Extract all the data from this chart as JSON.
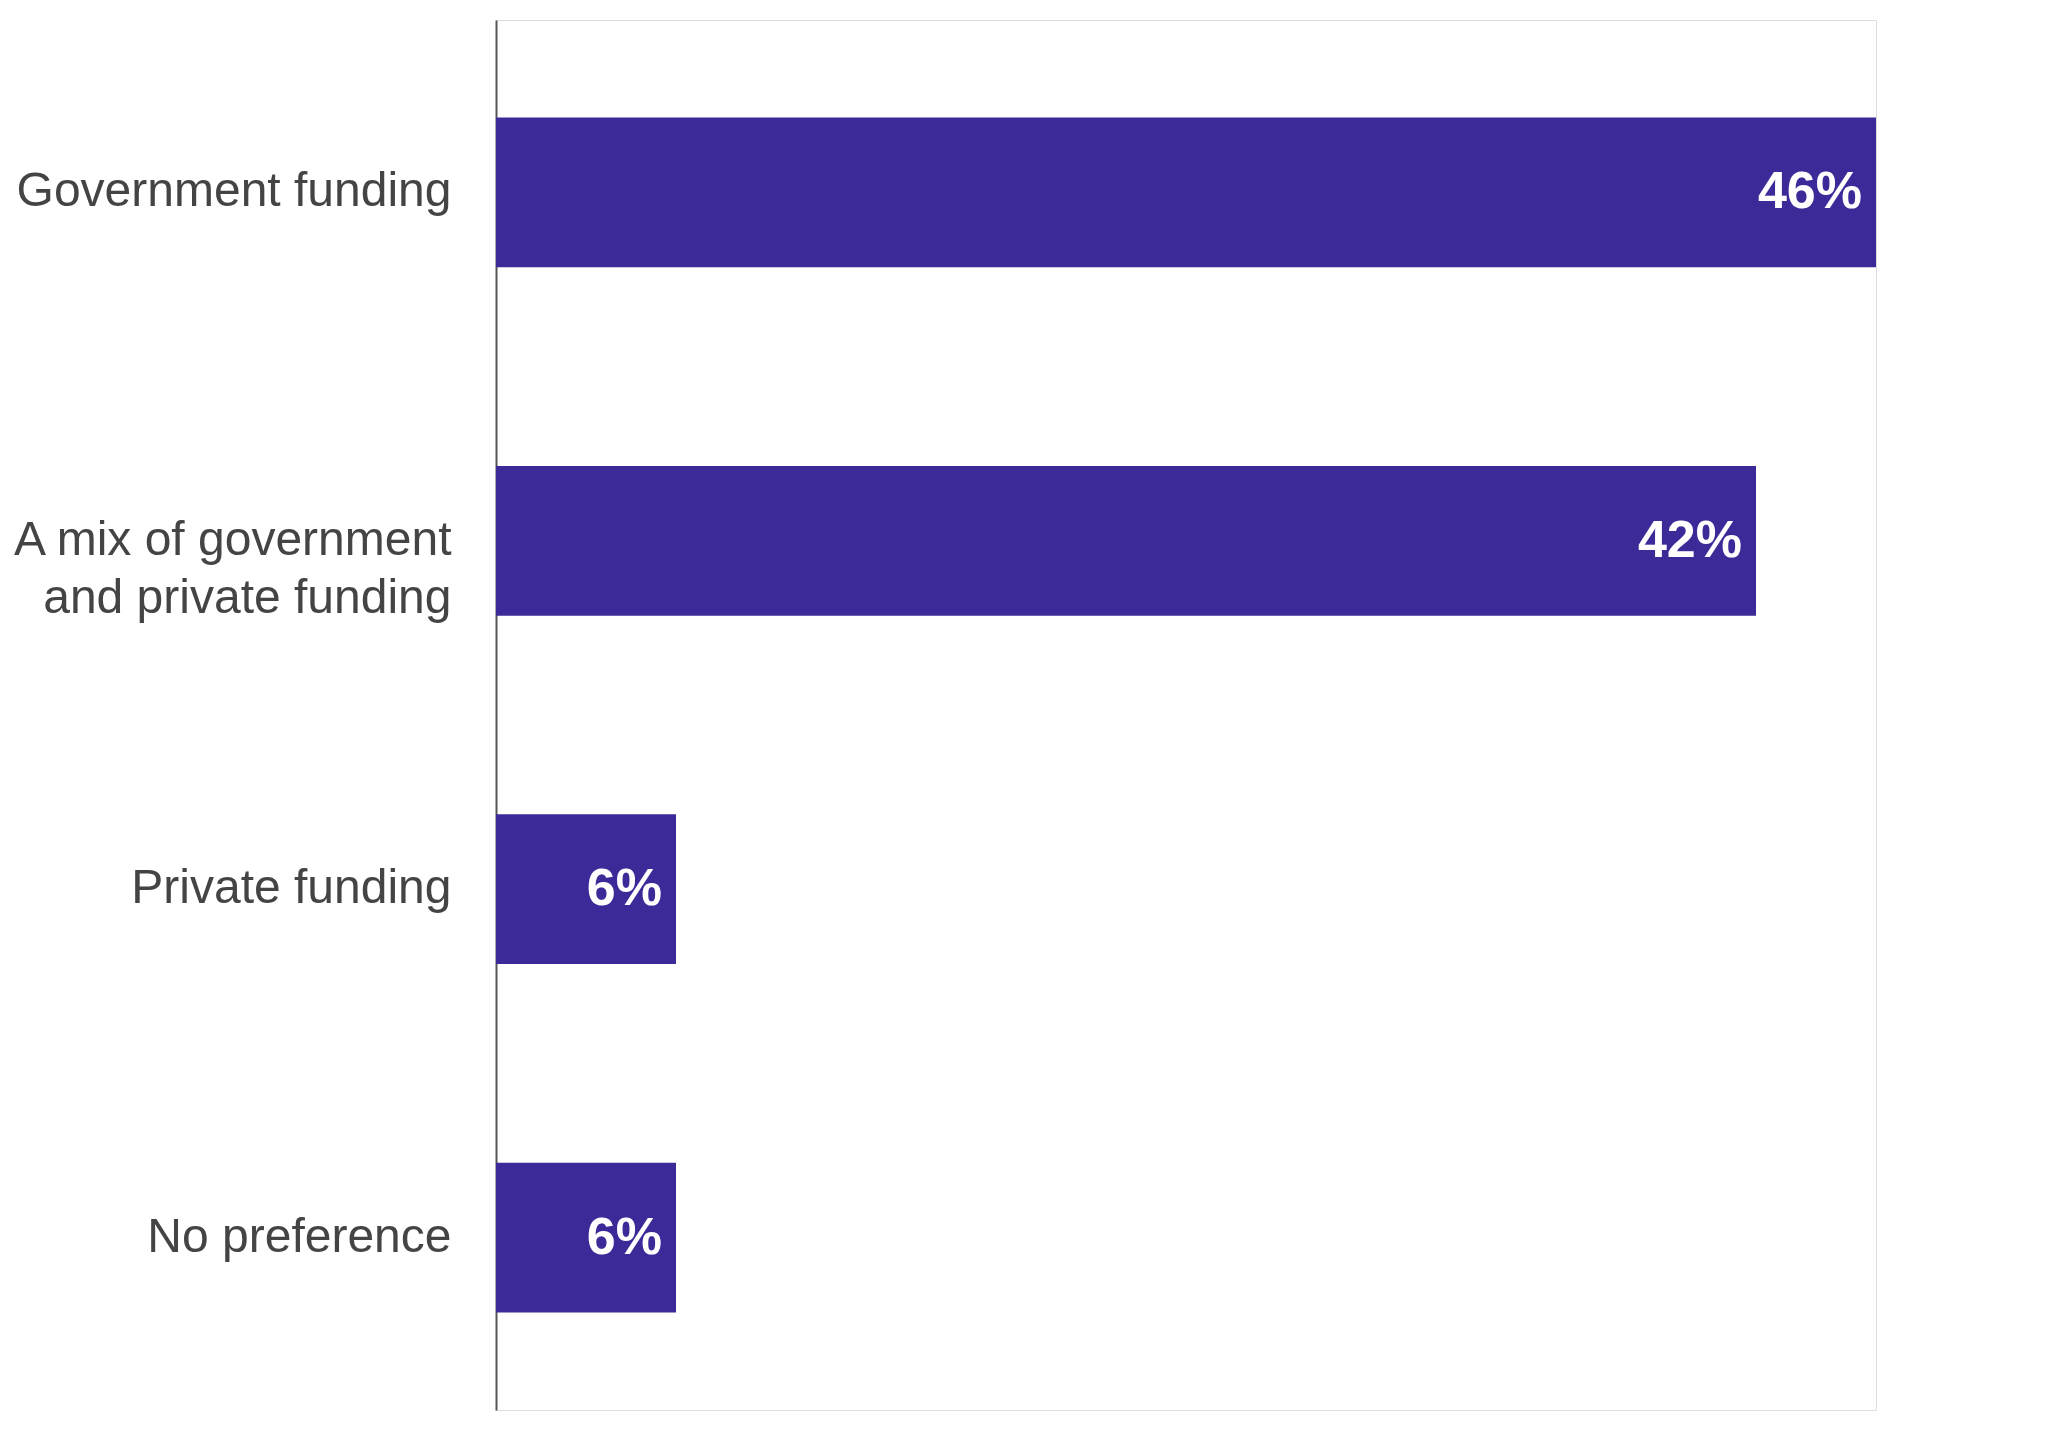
{
  "chart_data": {
    "type": "bar",
    "orientation": "horizontal",
    "categories": [
      "Government funding",
      "A mix of government\nand private funding",
      "Private funding",
      "No preference"
    ],
    "values": [
      46,
      42,
      6,
      6
    ],
    "colors": [
      "#3c2a98",
      "#3c2a98",
      "#3c2a98",
      "#3c2a98"
    ],
    "value_labels": [
      "46%",
      "42%",
      "6%",
      "6%"
    ]
  }
}
